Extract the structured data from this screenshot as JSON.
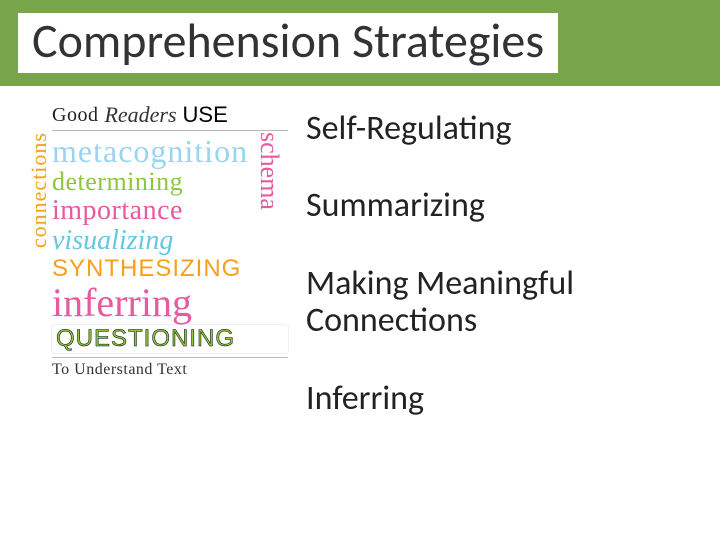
{
  "colors": {
    "title_bar_bg": "#78a54b",
    "title_text": "#333333",
    "body_text": "#222222",
    "wordart_black": "#222222",
    "wordart_blue": "#66c7e0",
    "wordart_lightblue": "#97d5f0",
    "wordart_green": "#8dc63f",
    "wordart_pink": "#e85aa0",
    "wordart_orange": "#f7a01b"
  },
  "typography": {
    "title_fontsize_pt": 36,
    "strategy_fontsize_pt": 26,
    "title_weight": 300,
    "strategy_weight": 400
  },
  "title": "Comprehension Strategies",
  "wordart": {
    "good": "Good",
    "readers": "Readers",
    "use": "USE",
    "metacognition": "metacognition",
    "determining": "determining",
    "importance": "importance",
    "visualizing": "visualizing",
    "synthesizing": "SYNTHESIZING",
    "inferring": "inferring",
    "questioning": "QUESTIONING",
    "understand": "To Understand Text",
    "connections": "connections",
    "schema": "schema"
  },
  "strategies": [
    "Self-Regulating",
    "Summarizing",
    "Making Meaningful Connections",
    "Inferring"
  ]
}
